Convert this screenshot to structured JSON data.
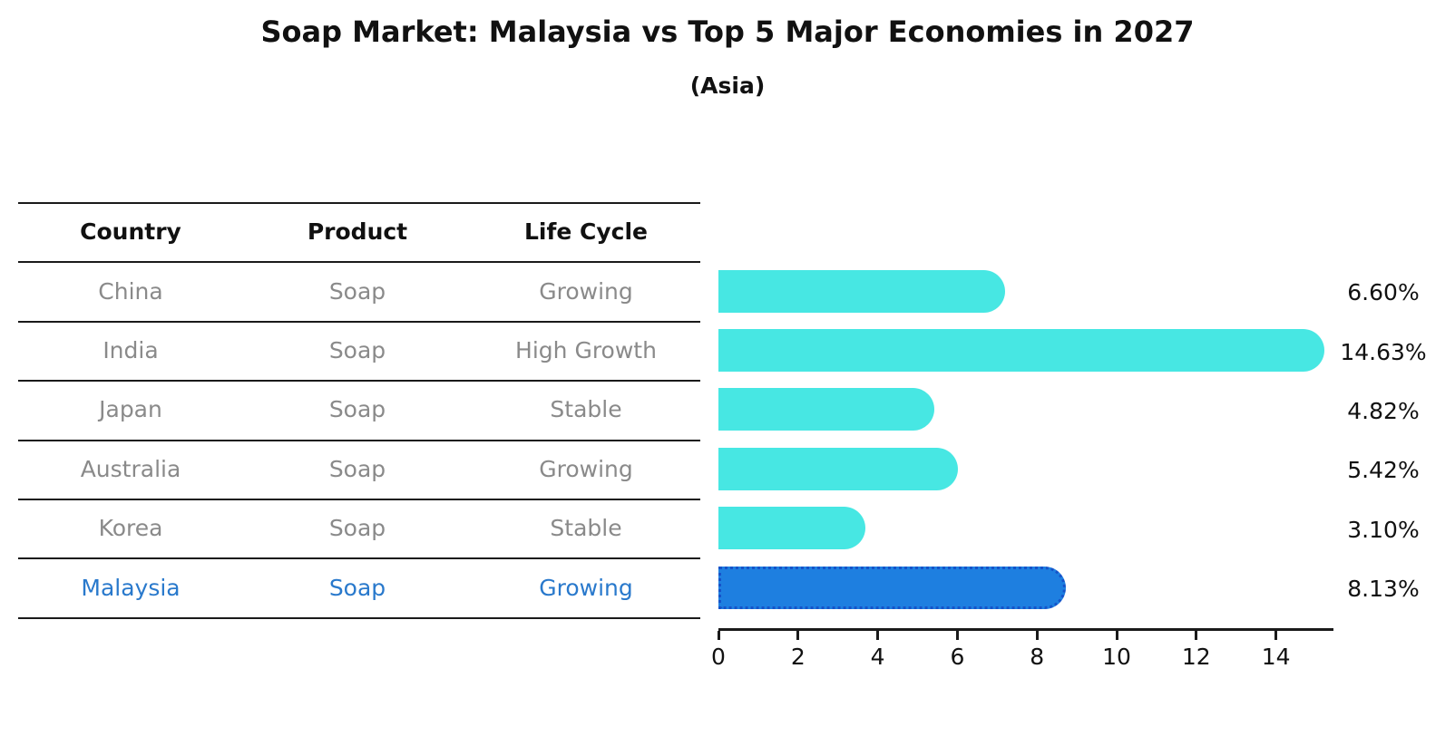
{
  "title": "Soap Market: Malaysia vs Top 5 Major Economies in 2027",
  "subtitle": "(Asia)",
  "table": {
    "headers": [
      "Country",
      "Product",
      "Life Cycle"
    ]
  },
  "chart_data": {
    "type": "bar",
    "orientation": "horizontal",
    "title": "Soap Market: Malaysia vs Top 5 Major Economies in 2027",
    "subtitle": "(Asia)",
    "xlabel": "",
    "ylabel": "",
    "x_ticks": [
      0,
      2,
      4,
      6,
      8,
      10,
      12,
      14
    ],
    "xlim": [
      0,
      15.45
    ],
    "grid": false,
    "legend": "none",
    "highlight_country": "Malaysia",
    "rows": [
      {
        "country": "China",
        "product": "Soap",
        "life_cycle": "Growing",
        "value": 6.6,
        "label": "6.60%",
        "highlight": false
      },
      {
        "country": "India",
        "product": "Soap",
        "life_cycle": "High Growth",
        "value": 14.63,
        "label": "14.63%",
        "highlight": false
      },
      {
        "country": "Japan",
        "product": "Soap",
        "life_cycle": "Stable",
        "value": 4.82,
        "label": "4.82%",
        "highlight": false
      },
      {
        "country": "Australia",
        "product": "Soap",
        "life_cycle": "Growing",
        "value": 5.42,
        "label": "5.42%",
        "highlight": false
      },
      {
        "country": "Korea",
        "product": "Soap",
        "life_cycle": "Stable",
        "value": 3.1,
        "label": "3.10%",
        "highlight": false
      },
      {
        "country": "Malaysia",
        "product": "Soap",
        "life_cycle": "Growing",
        "value": 8.13,
        "label": "8.13%",
        "highlight": true
      }
    ],
    "colors": {
      "bar": "#47E7E3",
      "highlight_bar": "#1E7FE0",
      "highlight_bar_edge": "#1553C9",
      "highlight_text": "#2979CC",
      "row_text": "#8A8A8A",
      "header_text": "#111111",
      "line": "#1A1A1A"
    }
  }
}
